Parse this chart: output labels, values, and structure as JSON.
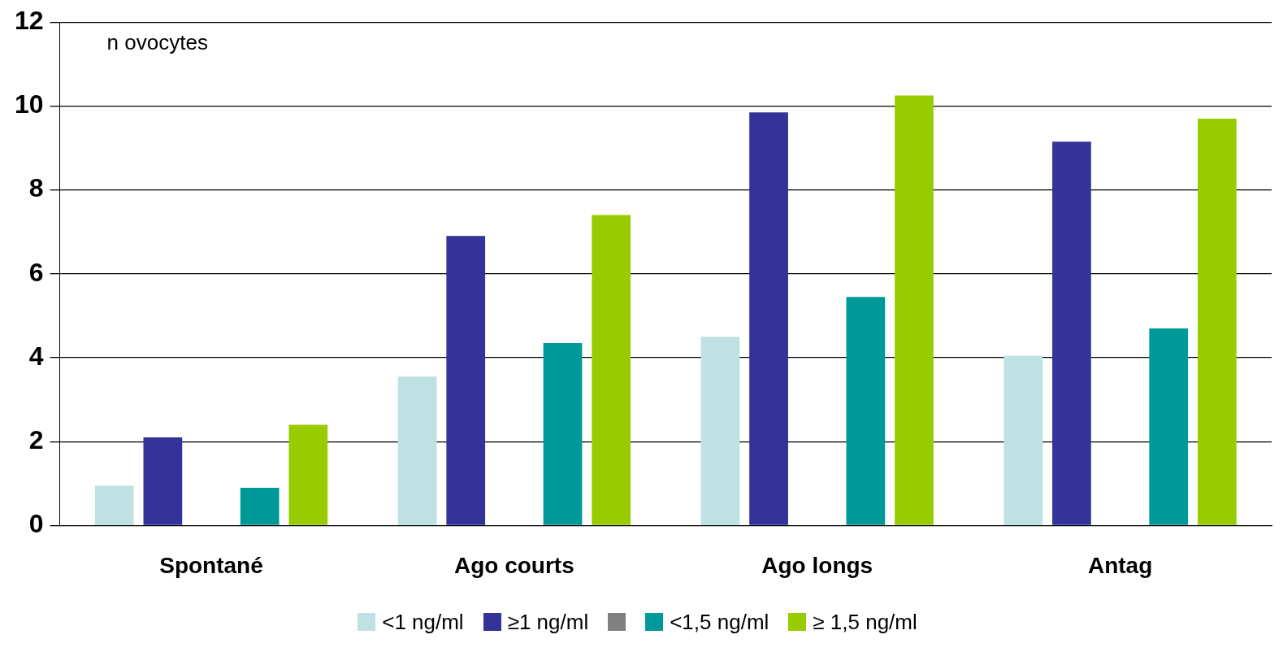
{
  "chart_data": {
    "type": "bar",
    "categories": [
      "Spontané",
      "Ago courts",
      "Ago longs",
      "Antag"
    ],
    "series": [
      {
        "name": "<1 ng/ml",
        "color": "#bfe1e3",
        "values": [
          0.95,
          3.55,
          4.5,
          4.05
        ]
      },
      {
        "name": "≥1 ng/ml",
        "color": "#333399",
        "values": [
          2.1,
          6.9,
          9.85,
          9.15
        ]
      },
      {
        "color": "#808080",
        "values": [
          null,
          null,
          null,
          null
        ]
      },
      {
        "name": "<1,5 ng/ml",
        "color": "#009999",
        "values": [
          0.9,
          4.35,
          5.45,
          4.7
        ]
      },
      {
        "name": "≥ 1,5 ng/ml",
        "color": "#99cc00",
        "values": [
          2.4,
          7.4,
          10.25,
          9.7
        ]
      }
    ],
    "ylim": [
      0,
      12
    ],
    "yticks": [
      0,
      2,
      4,
      6,
      8,
      10,
      12
    ],
    "grid": "y",
    "legend": "bottom",
    "annotations": [
      "n ovocytes"
    ]
  }
}
